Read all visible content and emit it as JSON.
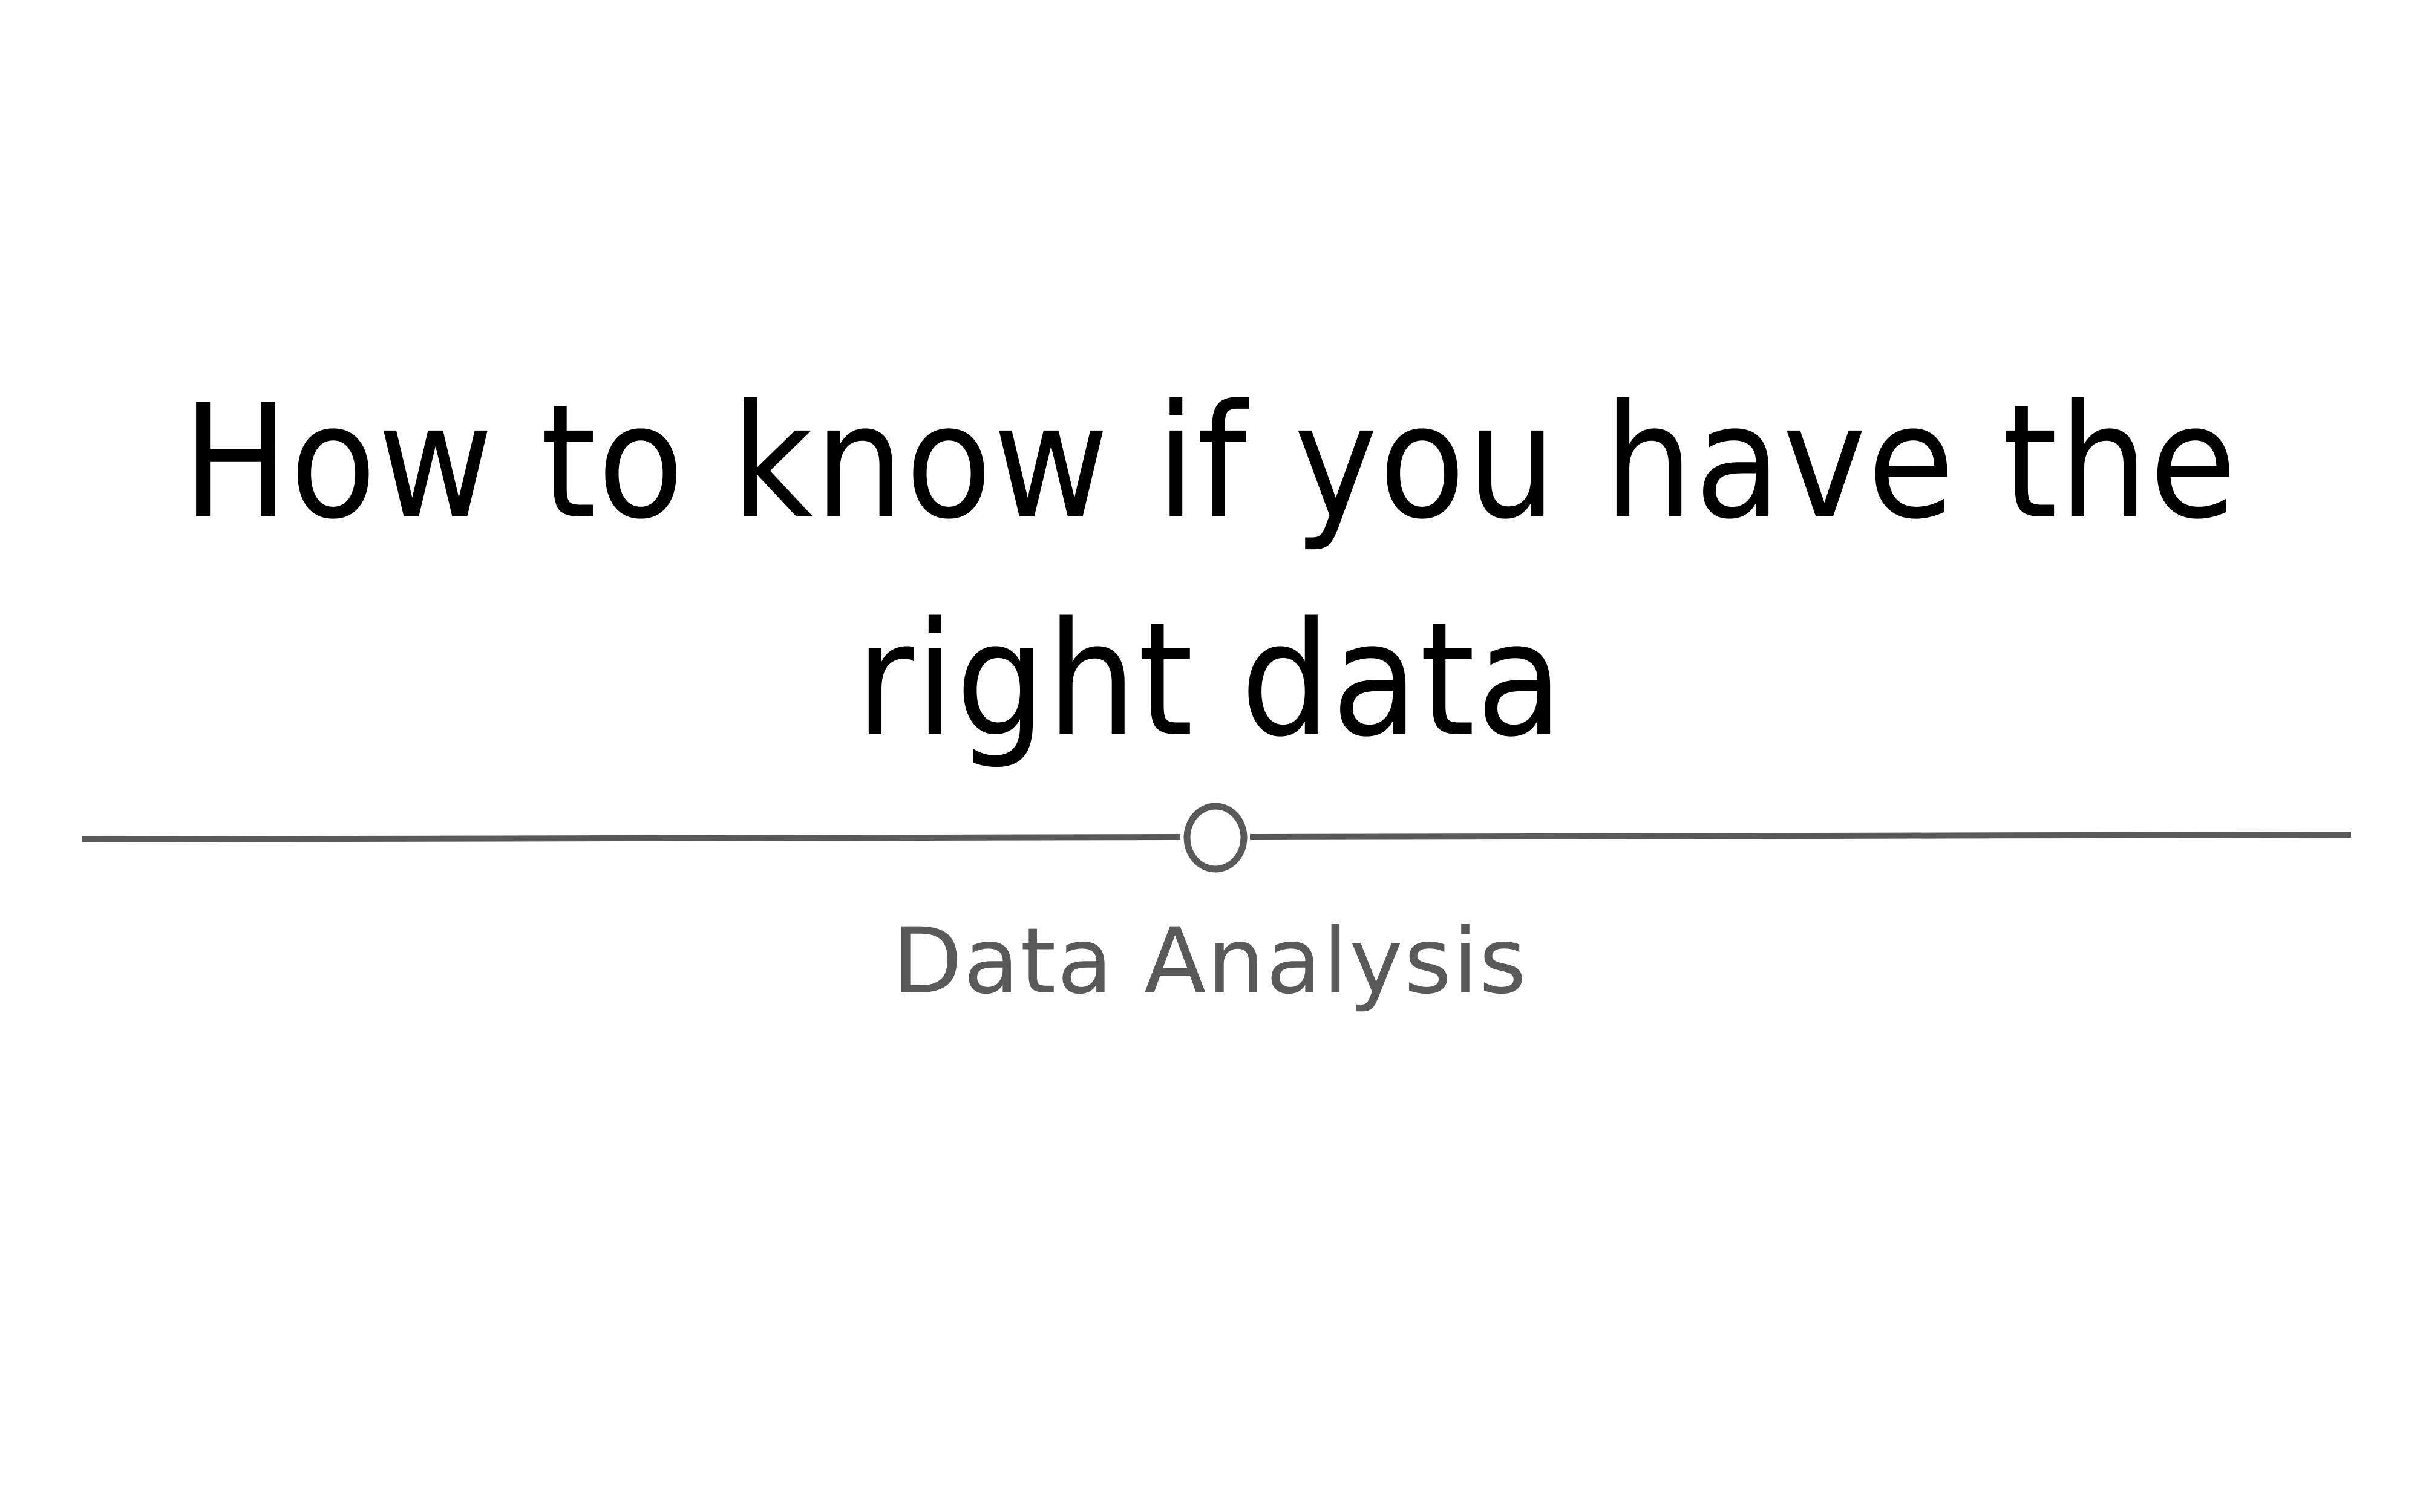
{
  "slide": {
    "title_line_1": "How to know if you have the",
    "title_line_2": "right data",
    "subtitle": "Data Analysis"
  },
  "colors": {
    "background": "#ffffff",
    "title_text": "#000000",
    "subtitle_text": "#595959",
    "divider": "#595959"
  }
}
